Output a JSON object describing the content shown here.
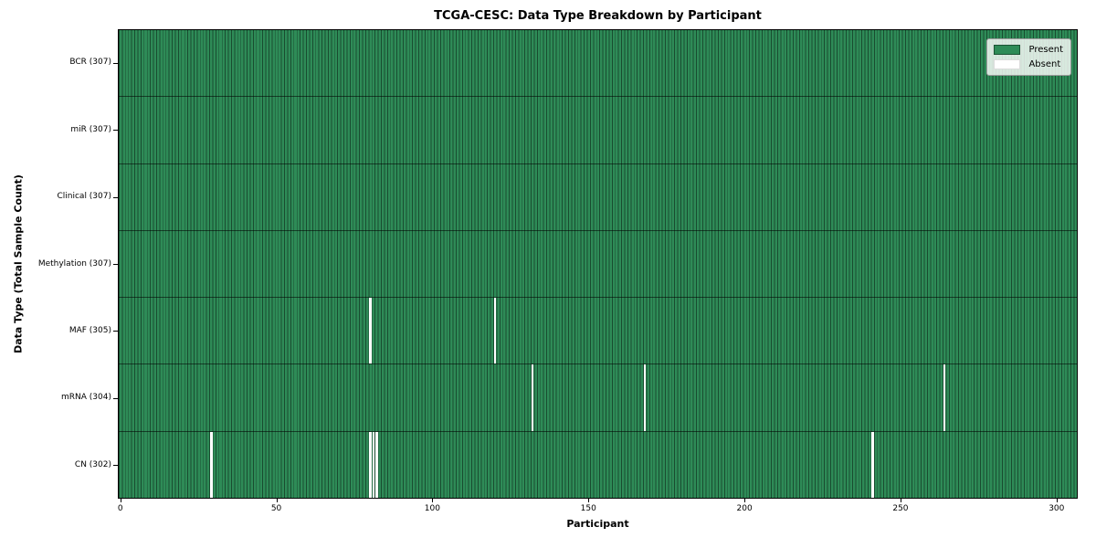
{
  "chart_data": {
    "type": "heatmap",
    "title": "TCGA-CESC: Data Type Breakdown by Participant",
    "xlabel": "Participant",
    "ylabel": "Data Type (Total Sample Count)",
    "x_ticks": [
      0,
      50,
      100,
      150,
      200,
      250,
      300
    ],
    "n_participants": 307,
    "legend_position": "upper right",
    "grid": false,
    "legend": [
      {
        "label": "Present",
        "color": "#2e8b57"
      },
      {
        "label": "Absent",
        "color": "#ffffff"
      }
    ],
    "colors": {
      "present": "#2e8b57",
      "absent": "#ffffff",
      "edge": "rgba(0,0,0,0.45)"
    },
    "rows": [
      {
        "label": "BCR (307)",
        "data_type": "BCR",
        "present_count": 307,
        "absent_participants": []
      },
      {
        "label": "miR (307)",
        "data_type": "miR",
        "present_count": 307,
        "absent_participants": []
      },
      {
        "label": "Clinical (307)",
        "data_type": "Clinical",
        "present_count": 307,
        "absent_participants": []
      },
      {
        "label": "Methylation (307)",
        "data_type": "Methylation",
        "present_count": 307,
        "absent_participants": []
      },
      {
        "label": "MAF (305)",
        "data_type": "MAF",
        "present_count": 305,
        "absent_participants": [
          80,
          120
        ]
      },
      {
        "label": "mRNA (304)",
        "data_type": "mRNA",
        "present_count": 304,
        "absent_participants": [
          132,
          168,
          264
        ]
      },
      {
        "label": "CN (302)",
        "data_type": "CN",
        "present_count": 302,
        "absent_participants": [
          29,
          80,
          81,
          82,
          241
        ]
      }
    ]
  }
}
